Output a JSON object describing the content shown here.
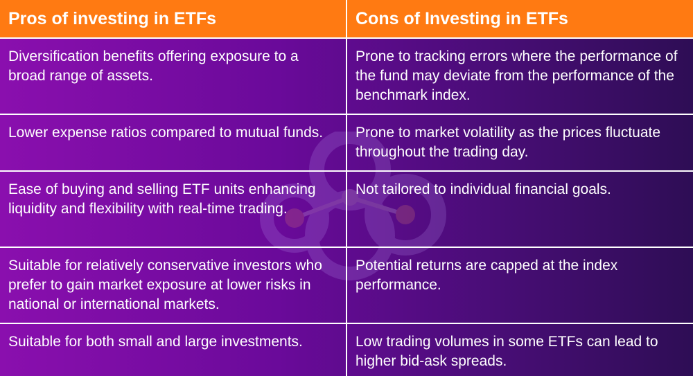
{
  "table": {
    "headers": [
      "Pros of investing in ETFs",
      "Cons of Investing in ETFs"
    ],
    "rows": [
      [
        "Diversification benefits offering exposure to a broad range of assets.",
        "Prone to tracking errors where the performance of the fund may deviate from the performance of the benchmark index."
      ],
      [
        "Lower expense ratios compared to mutual funds.",
        "Prone to market volatility as the prices fluctuate throughout the trading day."
      ],
      [
        "Ease of buying and selling ETF units enhancing liquidity and flexibility with real-time trading.",
        "Not tailored to individual financial goals."
      ],
      [
        "Suitable for relatively conservative investors who prefer to gain market exposure at lower risks in national or international markets.",
        "Potential returns are capped at the index performance."
      ],
      [
        "Suitable for both small and large investments.",
        "Low trading volumes in some ETFs can lead to higher bid-ask spreads."
      ]
    ]
  },
  "colors": {
    "header_bg": "#ff7a12",
    "body_gradient_start": "#8a0fae",
    "body_gradient_end": "#2e0d55",
    "text": "#ffffff",
    "grid": "#ffffff"
  },
  "watermark_icon": "molecule-logo-icon"
}
